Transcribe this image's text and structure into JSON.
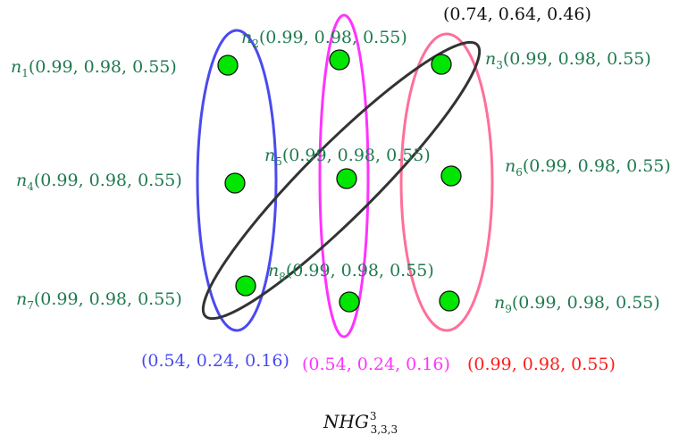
{
  "colors": {
    "node_fill": "#00e600",
    "node_label": "#1e7a4e",
    "blue": "#4a4af0",
    "magenta": "#ff33ff",
    "pink": "#ff6f9a",
    "dark": "#333333",
    "red_label": "#ff1a1a"
  },
  "nodes": [
    {
      "name": "n",
      "sub": "1",
      "value": "(0.99, 0.98, 0.55)"
    },
    {
      "name": "n",
      "sub": "2",
      "value": "(0.99, 0.98, 0.55)"
    },
    {
      "name": "n",
      "sub": "3",
      "value": "(0.99, 0.98, 0.55)"
    },
    {
      "name": "n",
      "sub": "4",
      "value": "(0.99, 0.98, 0.55)"
    },
    {
      "name": "n",
      "sub": "5",
      "value": "(0.99, 0.98, 0.55)"
    },
    {
      "name": "n",
      "sub": "6",
      "value": "(0.99, 0.98, 0.55)"
    },
    {
      "name": "n",
      "sub": "7",
      "value": "(0.99, 0.98, 0.55)"
    },
    {
      "name": "n",
      "sub": "8",
      "value": "(0.99, 0.98, 0.55)"
    },
    {
      "name": "n",
      "sub": "9",
      "value": "(0.99, 0.98, 0.55)"
    }
  ],
  "hyperedges": {
    "blue": "(0.54, 0.24, 0.16)",
    "magenta": "(0.54, 0.24, 0.16)",
    "pink": "(0.99, 0.98, 0.55)",
    "diagonal": "(0.74, 0.64, 0.46)"
  },
  "title": {
    "main": "NHG",
    "sup": "3",
    "sub": "3,3,3"
  }
}
